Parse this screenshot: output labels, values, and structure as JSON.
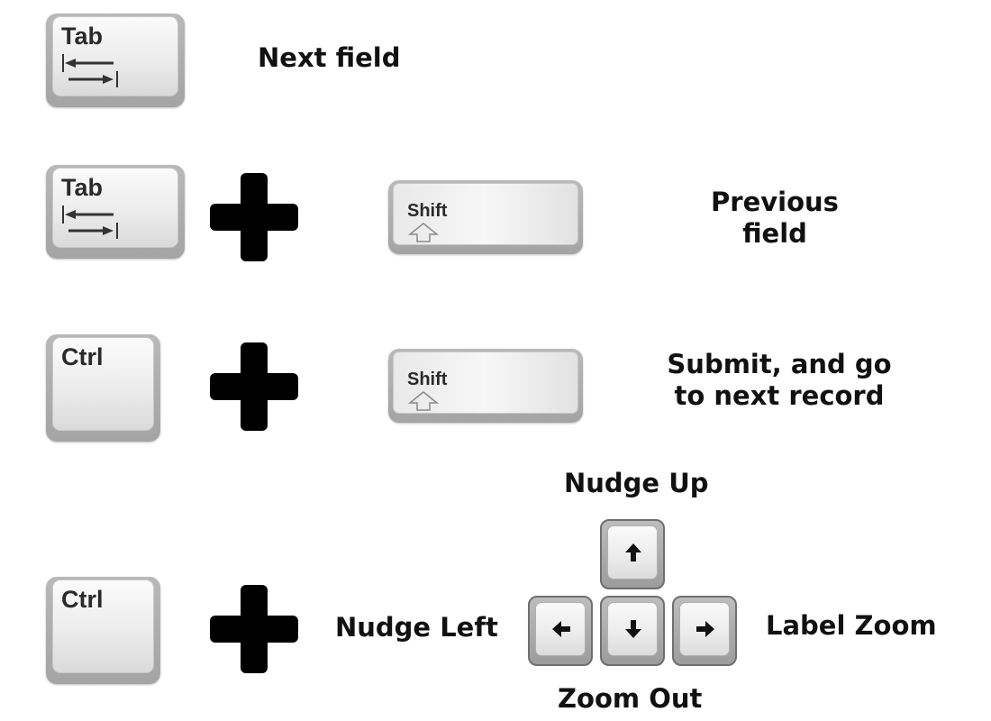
{
  "rows": [
    {
      "keys": [
        "Tab"
      ],
      "action": [
        "Next field"
      ]
    },
    {
      "keys": [
        "Tab",
        "Shift"
      ],
      "action": [
        "Previous",
        "field"
      ]
    },
    {
      "keys": [
        "Ctrl",
        "Shift"
      ],
      "action": [
        "Submit, and go",
        "to next record"
      ]
    },
    {
      "keys": [
        "Ctrl"
      ],
      "labels": {
        "up": "Nudge Up",
        "left": "Nudge Left",
        "right": "Label Zoom",
        "down": "Zoom Out"
      }
    }
  ],
  "icons": {
    "tab": "tab-arrows-icon",
    "shift": "shift-up-outline-icon",
    "plus": "plus-icon",
    "arrows": [
      "arrow-up-icon",
      "arrow-left-icon",
      "arrow-down-icon",
      "arrow-right-icon"
    ]
  },
  "colors": {
    "text": "#111111",
    "plus": "#000000",
    "key_face": "#eeeeee",
    "key_base": "#aaaaaa"
  }
}
